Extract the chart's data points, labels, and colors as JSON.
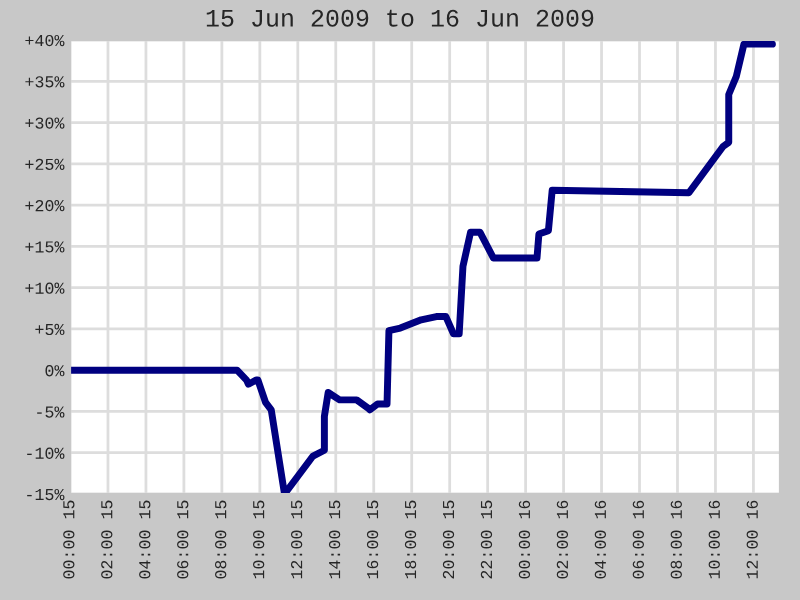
{
  "chart_data": {
    "type": "line",
    "title": "15 Jun 2009 to 16 Jun 2009",
    "x": [
      "2009-06-15T00:00",
      "2009-06-15T08:48",
      "2009-06-15T09:18",
      "2009-06-15T09:24",
      "2009-06-15T09:48",
      "2009-06-15T09:54",
      "2009-06-15T10:18",
      "2009-06-15T10:36",
      "2009-06-15T11:18",
      "2009-06-15T12:48",
      "2009-06-15T13:24",
      "2009-06-15T13:24",
      "2009-06-15T13:36",
      "2009-06-15T14:12",
      "2009-06-15T15:06",
      "2009-06-15T15:42",
      "2009-06-15T15:48",
      "2009-06-15T16:12",
      "2009-06-15T16:42",
      "2009-06-15T16:48",
      "2009-06-15T17:24",
      "2009-06-15T18:30",
      "2009-06-15T19:18",
      "2009-06-15T19:48",
      "2009-06-15T20:12",
      "2009-06-15T20:30",
      "2009-06-15T20:42",
      "2009-06-15T21:06",
      "2009-06-15T21:36",
      "2009-06-15T22:18",
      "2009-06-16T00:36",
      "2009-06-16T00:42",
      "2009-06-16T01:12",
      "2009-06-16T01:24",
      "2009-06-16T08:36",
      "2009-06-16T10:24",
      "2009-06-16T10:42",
      "2009-06-16T10:42",
      "2009-06-16T11:06",
      "2009-06-16T11:30",
      "2009-06-16T13:00"
    ],
    "series": [
      {
        "color": "#000080",
        "values": [
          0,
          0,
          -1.2,
          -1.7,
          -1.2,
          -1.2,
          -3.9,
          -4.8,
          -15,
          -10.4,
          -9.7,
          -5.6,
          -2.7,
          -3.6,
          -3.6,
          -4.6,
          -4.8,
          -4.1,
          -4.1,
          4.8,
          5.1,
          6.1,
          6.5,
          6.5,
          4.4,
          4.4,
          12.6,
          16.7,
          16.7,
          13.6,
          13.6,
          16.5,
          16.9,
          21.8,
          21.5,
          27.1,
          27.6,
          33.4,
          35.6,
          39.5,
          39.5
        ]
      }
    ],
    "xlim": [
      "2009-06-15T00:00",
      "2009-06-16T13:24"
    ],
    "xticks": [
      {
        "value": "2009-06-15T00:00",
        "label": "00:00 15"
      },
      {
        "value": "2009-06-15T02:00",
        "label": "02:00 15"
      },
      {
        "value": "2009-06-15T04:00",
        "label": "04:00 15"
      },
      {
        "value": "2009-06-15T06:00",
        "label": "06:00 15"
      },
      {
        "value": "2009-06-15T08:00",
        "label": "08:00 15"
      },
      {
        "value": "2009-06-15T10:00",
        "label": "10:00 15"
      },
      {
        "value": "2009-06-15T12:00",
        "label": "12:00 15"
      },
      {
        "value": "2009-06-15T14:00",
        "label": "14:00 15"
      },
      {
        "value": "2009-06-15T16:00",
        "label": "16:00 15"
      },
      {
        "value": "2009-06-15T18:00",
        "label": "18:00 15"
      },
      {
        "value": "2009-06-15T20:00",
        "label": "20:00 15"
      },
      {
        "value": "2009-06-15T22:00",
        "label": "22:00 15"
      },
      {
        "value": "2009-06-16T00:00",
        "label": "00:00 16"
      },
      {
        "value": "2009-06-16T02:00",
        "label": "02:00 16"
      },
      {
        "value": "2009-06-16T04:00",
        "label": "04:00 16"
      },
      {
        "value": "2009-06-16T06:00",
        "label": "06:00 16"
      },
      {
        "value": "2009-06-16T08:00",
        "label": "08:00 16"
      },
      {
        "value": "2009-06-16T10:00",
        "label": "10:00 16"
      },
      {
        "value": "2009-06-16T12:00",
        "label": "12:00 16"
      }
    ],
    "ylim": [
      -15,
      40
    ],
    "yticks": [
      {
        "value": -15,
        "label": "-15%"
      },
      {
        "value": -10,
        "label": "-10%"
      },
      {
        "value": -5,
        "label": "-5%"
      },
      {
        "value": 0,
        "label": "0%"
      },
      {
        "value": 5,
        "label": "+5%"
      },
      {
        "value": 10,
        "label": "+10%"
      },
      {
        "value": 15,
        "label": "+15%"
      },
      {
        "value": 20,
        "label": "+20%"
      },
      {
        "value": 25,
        "label": "+25%"
      },
      {
        "value": 30,
        "label": "+30%"
      },
      {
        "value": 35,
        "label": "+35%"
      },
      {
        "value": 40,
        "label": "+40%"
      }
    ],
    "grid": true,
    "legend": false,
    "marker": "none",
    "line_style": "solid"
  }
}
